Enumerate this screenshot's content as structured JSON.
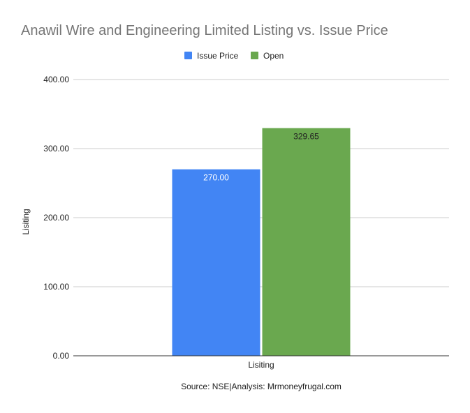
{
  "chart_data": {
    "type": "bar",
    "title": "Anawil Wire and Engineering Limited Listing vs. Issue Price",
    "categories": [
      "Lisiting"
    ],
    "series": [
      {
        "name": "Issue Price",
        "values": [
          270.0
        ],
        "labels": [
          "270.00"
        ],
        "color": "#4285f4",
        "label_color": "#ffffff"
      },
      {
        "name": "Open",
        "values": [
          329.65
        ],
        "labels": [
          "329.65"
        ],
        "color": "#6aa84f",
        "label_color": "#222222"
      }
    ],
    "xlabel": "Lisiting",
    "ylabel": "Lisiting",
    "ylim": [
      0,
      400
    ],
    "yticks": [
      "0.00",
      "100.00",
      "200.00",
      "300.00",
      "400.00"
    ],
    "ytick_values": [
      0,
      100,
      200,
      300,
      400
    ],
    "legend_position": "top",
    "grid": true,
    "source": "Source: NSE|Analysis: Mrmoneyfrugal.com"
  }
}
